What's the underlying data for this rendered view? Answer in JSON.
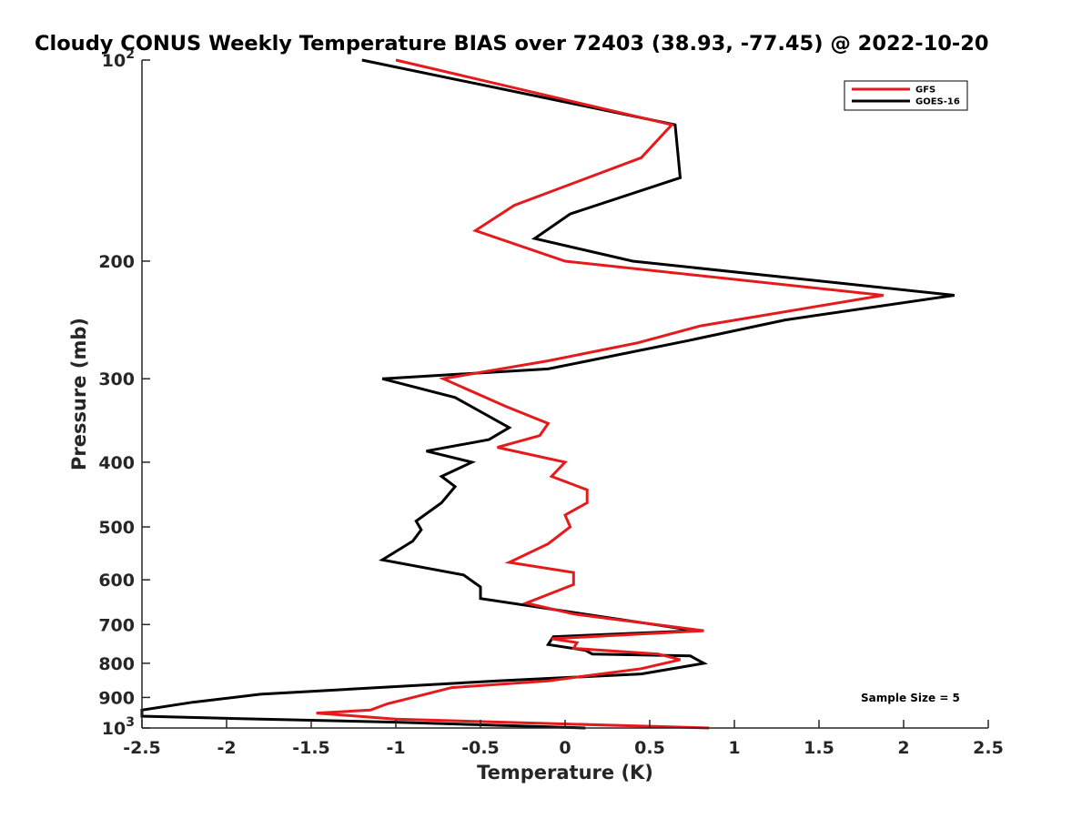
{
  "chart_data": {
    "type": "line",
    "title": "Cloudy CONUS Weekly Temperature BIAS over 72403 (38.93, -77.45) @ 2022-10-20",
    "xlabel": "Temperature (K)",
    "ylabel": "Pressure (mb)",
    "xlim": [
      -2.5,
      2.5
    ],
    "ylim": [
      100,
      1000
    ],
    "y_scale": "log",
    "y_reversed": true,
    "grid": false,
    "legend_position": "top-right",
    "annotation": "Sample Size = 5",
    "x_ticks": [
      "-2.5",
      "-2",
      "-1.5",
      "-1",
      "-0.5",
      "0",
      "0.5",
      "1",
      "1.5",
      "2",
      "2.5"
    ],
    "y_ticks": [
      {
        "value": 100,
        "base": "10",
        "exp": "2"
      },
      {
        "value": 200,
        "label": "200"
      },
      {
        "value": 300,
        "label": "300"
      },
      {
        "value": 400,
        "label": "400"
      },
      {
        "value": 500,
        "label": "500"
      },
      {
        "value": 600,
        "label": "600"
      },
      {
        "value": 700,
        "label": "700"
      },
      {
        "value": 800,
        "label": "800"
      },
      {
        "value": 900,
        "label": "900"
      },
      {
        "value": 1000,
        "base": "10",
        "exp": "3"
      }
    ],
    "series": [
      {
        "name": "GFS",
        "color": "#e41a1c",
        "points": [
          [
            -1.0,
            100
          ],
          [
            0.63,
            125
          ],
          [
            0.45,
            140
          ],
          [
            -0.3,
            165
          ],
          [
            -0.53,
            180
          ],
          [
            0.0,
            200
          ],
          [
            1.88,
            225
          ],
          [
            0.8,
            250
          ],
          [
            0.43,
            265
          ],
          [
            -0.1,
            282
          ],
          [
            -0.72,
            300
          ],
          [
            -0.35,
            330
          ],
          [
            -0.1,
            350
          ],
          [
            -0.15,
            365
          ],
          [
            -0.4,
            380
          ],
          [
            -0.0,
            400
          ],
          [
            -0.08,
            420
          ],
          [
            0.13,
            440
          ],
          [
            0.13,
            460
          ],
          [
            0.0,
            480
          ],
          [
            0.03,
            500
          ],
          [
            -0.1,
            530
          ],
          [
            -0.33,
            565
          ],
          [
            0.05,
            585
          ],
          [
            0.05,
            610
          ],
          [
            -0.23,
            650
          ],
          [
            0.05,
            675
          ],
          [
            0.82,
            715
          ],
          [
            -0.08,
            735
          ],
          [
            0.07,
            745
          ],
          [
            0.05,
            760
          ],
          [
            0.55,
            775
          ],
          [
            0.68,
            790
          ],
          [
            0.45,
            815
          ],
          [
            -0.1,
            850
          ],
          [
            -0.67,
            870
          ],
          [
            -0.9,
            900
          ],
          [
            -1.05,
            920
          ],
          [
            -1.15,
            940
          ],
          [
            -1.47,
            950
          ],
          [
            -1.0,
            970
          ],
          [
            0.85,
            1000
          ]
        ]
      },
      {
        "name": "GOES-16",
        "color": "#000000",
        "points": [
          [
            -1.2,
            100
          ],
          [
            0.65,
            125
          ],
          [
            0.68,
            150
          ],
          [
            0.03,
            170
          ],
          [
            -0.18,
            185
          ],
          [
            0.4,
            200
          ],
          [
            2.3,
            225
          ],
          [
            1.3,
            245
          ],
          [
            0.73,
            263
          ],
          [
            -0.1,
            290
          ],
          [
            -1.08,
            300
          ],
          [
            -0.65,
            320
          ],
          [
            -0.33,
            355
          ],
          [
            -0.45,
            370
          ],
          [
            -0.82,
            385
          ],
          [
            -0.55,
            400
          ],
          [
            -0.73,
            420
          ],
          [
            -0.65,
            435
          ],
          [
            -0.73,
            460
          ],
          [
            -0.88,
            490
          ],
          [
            -0.85,
            505
          ],
          [
            -0.9,
            525
          ],
          [
            -1.08,
            560
          ],
          [
            -0.6,
            590
          ],
          [
            -0.5,
            615
          ],
          [
            -0.5,
            625
          ],
          [
            -0.5,
            640
          ],
          [
            0.77,
            715
          ],
          [
            -0.07,
            730
          ],
          [
            -0.1,
            750
          ],
          [
            0.12,
            765
          ],
          [
            0.16,
            775
          ],
          [
            0.74,
            780
          ],
          [
            0.82,
            800
          ],
          [
            0.45,
            830
          ],
          [
            -0.4,
            850
          ],
          [
            -1.8,
            890
          ],
          [
            -2.2,
            915
          ],
          [
            -2.5,
            940
          ],
          [
            -2.5,
            960
          ],
          [
            -1.8,
            970
          ],
          [
            -1.0,
            980
          ],
          [
            0.12,
            1000
          ]
        ]
      }
    ]
  }
}
